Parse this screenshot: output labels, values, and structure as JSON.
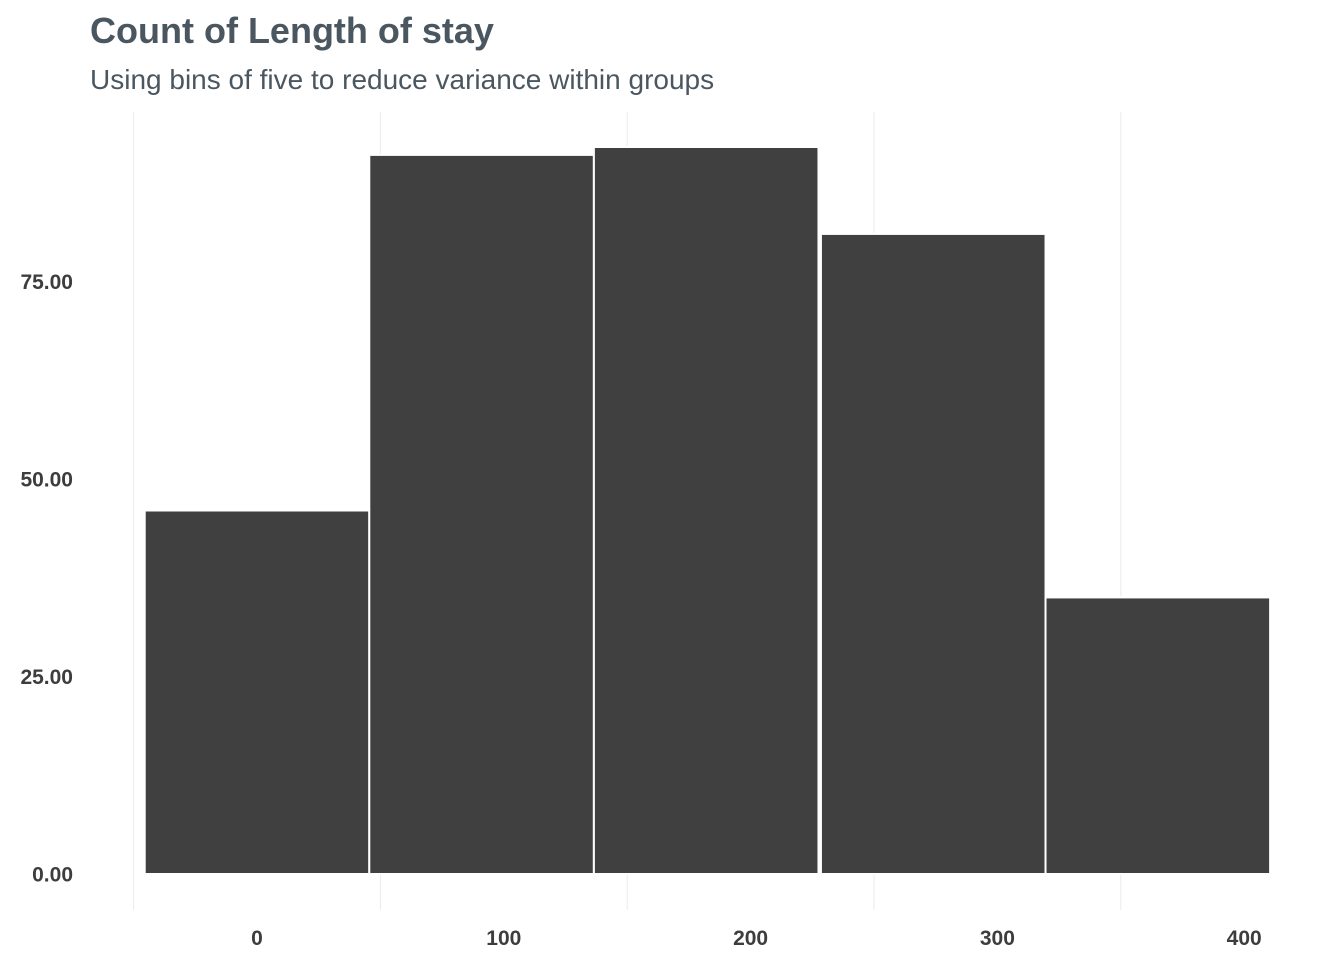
{
  "chart_data": {
    "type": "bar",
    "title": "Count of Length of stay",
    "subtitle": "Using bins of five to reduce variance within groups",
    "xlabel": "",
    "ylabel": "",
    "bins": [
      {
        "x_center": 0,
        "value": 46
      },
      {
        "x_center": 91,
        "value": 91
      },
      {
        "x_center": 182,
        "value": 92
      },
      {
        "x_center": 274,
        "value": 81
      },
      {
        "x_center": 365,
        "value": 35
      }
    ],
    "bin_width": 91,
    "x_ticks": [
      0,
      100,
      200,
      300,
      400
    ],
    "x_tick_labels": [
      "0",
      "100",
      "200",
      "300",
      "400"
    ],
    "y_ticks": [
      0,
      25,
      50,
      75
    ],
    "y_tick_labels": [
      "0.00",
      "25.00",
      "50.00",
      "75.00"
    ],
    "xlim": [
      -50,
      415
    ],
    "ylim": [
      0,
      92
    ],
    "bar_color": "#404040",
    "grid": "vertical-major",
    "legend": "none"
  }
}
